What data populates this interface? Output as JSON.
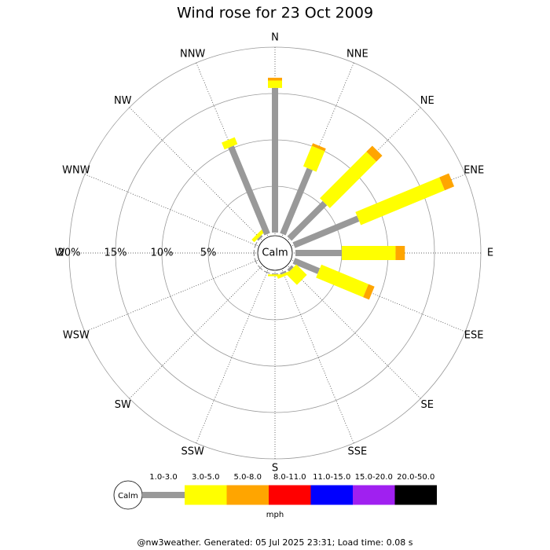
{
  "chart_data": {
    "type": "wind_rose",
    "title": "Wind rose for 23 Oct 2009",
    "directions": [
      "N",
      "NNE",
      "NE",
      "ENE",
      "E",
      "ESE",
      "SE",
      "SSE",
      "S",
      "SSW",
      "SW",
      "WSW",
      "W",
      "WNW",
      "NW",
      "NNW"
    ],
    "series": [
      {
        "name": "1.0-3.0",
        "color": "#999999",
        "values": [
          15.6,
          7.6,
          5.4,
          7.5,
          5.0,
          2.9,
          0.3,
          0.2,
          0.1,
          0.1,
          0.1,
          0.1,
          0.1,
          0.1,
          0.2,
          10.2
        ]
      },
      {
        "name": "3.0-5.0",
        "color": "#ffff00",
        "values": [
          0.8,
          2.4,
          7.1,
          9.8,
          5.8,
          5.5,
          1.6,
          0.3,
          0.2,
          0,
          0,
          0,
          0,
          0,
          0.4,
          0.8
        ]
      },
      {
        "name": "5.0-8.0",
        "color": "#ffa500",
        "values": [
          0.3,
          0.3,
          0.9,
          1.1,
          1.0,
          0.7,
          0,
          0,
          0,
          0,
          0,
          0,
          0,
          0,
          0,
          0
        ]
      },
      {
        "name": "8.0-11.0",
        "color": "#ff0000",
        "values": [
          0,
          0,
          0,
          0,
          0,
          0,
          0,
          0,
          0,
          0,
          0,
          0,
          0,
          0,
          0,
          0
        ]
      },
      {
        "name": "11.0-15.0",
        "color": "#0000ff",
        "values": [
          0,
          0,
          0,
          0,
          0,
          0,
          0,
          0,
          0,
          0,
          0,
          0,
          0,
          0,
          0,
          0
        ]
      },
      {
        "name": "15.0-20.0",
        "color": "#a020f0",
        "values": [
          0,
          0,
          0,
          0,
          0,
          0,
          0,
          0,
          0,
          0,
          0,
          0,
          0,
          0,
          0,
          0
        ]
      },
      {
        "name": "20.0-50.0",
        "color": "#000000",
        "values": [
          0,
          0,
          0,
          0,
          0,
          0,
          0,
          0,
          0,
          0,
          0,
          0,
          0,
          0,
          0,
          0
        ]
      }
    ],
    "rlim": [
      0,
      20
    ],
    "rticks": [
      {
        "value": 5,
        "label": "5%"
      },
      {
        "value": 10,
        "label": "10%"
      },
      {
        "value": 15,
        "label": "15%"
      },
      {
        "value": 20,
        "label": "20%"
      }
    ],
    "calm_label": "Calm",
    "unit_label": "mph",
    "footer": "@nw3weather. Generated: 05 Jul 2025 23:31; Load time: 0.08 s"
  }
}
